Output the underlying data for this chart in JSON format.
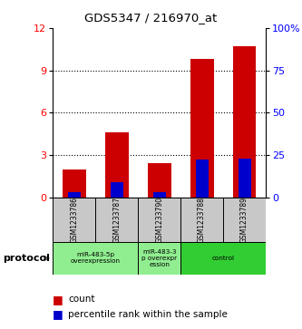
{
  "title": "GDS5347 / 216970_at",
  "samples": [
    "GSM1233786",
    "GSM1233787",
    "GSM1233790",
    "GSM1233788",
    "GSM1233789"
  ],
  "red_values": [
    2.0,
    4.6,
    2.4,
    9.8,
    10.7
  ],
  "blue_values_pct": [
    3.0,
    9.0,
    3.0,
    22.5,
    23.0
  ],
  "ylim_left": [
    0,
    12
  ],
  "ylim_right": [
    0,
    100
  ],
  "yticks_left": [
    0,
    3,
    6,
    9,
    12
  ],
  "yticks_right": [
    0,
    25,
    50,
    75,
    100
  ],
  "ytick_labels_right": [
    "0",
    "25",
    "50",
    "75",
    "100%"
  ],
  "bar_width": 0.55,
  "blue_bar_width": 0.3,
  "red_color": "#CC0000",
  "blue_color": "#0000CC",
  "sample_box_color": "#C8C8C8",
  "group_spans": [
    {
      "start": 0,
      "end": 2,
      "label": "miR-483-5p\noverexpression",
      "color": "#90EE90"
    },
    {
      "start": 2,
      "end": 3,
      "label": "miR-483-3\np overexpr\nession",
      "color": "#90EE90"
    },
    {
      "start": 3,
      "end": 5,
      "label": "control",
      "color": "#32CD32"
    }
  ],
  "protocol_label": "protocol",
  "legend_count": "count",
  "legend_pct": "percentile rank within the sample",
  "gridline_vals": [
    3,
    6,
    9
  ]
}
